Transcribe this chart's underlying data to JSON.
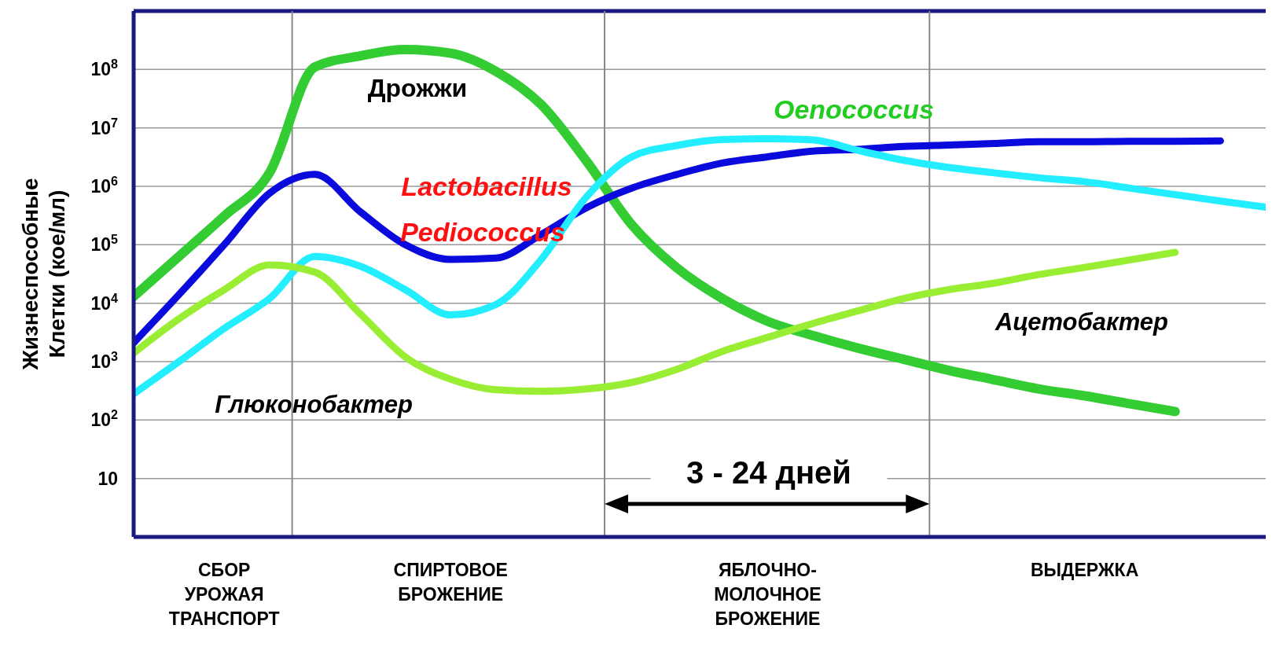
{
  "chart_data": {
    "type": "line",
    "ylabel": "Жизнеспособные\nКлетки (кое/мл)",
    "log": "y",
    "grid": "y",
    "marker": "none",
    "line_style": "solid",
    "categories": [
      null,
      null,
      "СБОР\nУРОЖАЯ\nТРАНСПОРТ",
      null,
      null,
      null,
      null,
      "СПИРТОВОЕ\nБРОЖЕНИЕ",
      null,
      null,
      null,
      null,
      null,
      null,
      "ЯБЛОЧНО-\nМОЛОЧНОЕ\nБРОЖЕНИЕ",
      null,
      null,
      null,
      null,
      null,
      null,
      "ВЫДЕРЖКА",
      null,
      null,
      null,
      null
    ],
    "ylim": [
      1,
      1000000000
    ],
    "yticks": [
      {
        "value": 10,
        "label": "10"
      },
      {
        "value": 100,
        "label": "10$^{2}$"
      },
      {
        "value": 1000,
        "label": "10$^{3}$"
      },
      {
        "value": 10000,
        "label": "10$^{4}$"
      },
      {
        "value": 100000,
        "label": "10$^{5}$"
      },
      {
        "value": 1000000,
        "label": "10$^{6}$"
      },
      {
        "value": 10000000,
        "label": "10$^{7}$"
      },
      {
        "value": 100000000,
        "label": "10$^{8}$"
      }
    ],
    "series": [
      {
        "color": "#33cc33",
        "values": [
          13000,
          63000,
          310000,
          1700000,
          110000000,
          170000000,
          220000000,
          190000000,
          93000000,
          25000000,
          2700000,
          220000,
          40000,
          12000,
          4900,
          2800,
          1700,
          1100,
          710,
          490,
          340,
          260,
          190,
          140,
          null,
          null
        ]
      },
      {
        "color": "#0a0adc",
        "values": [
          2100,
          14000,
          100000,
          760000,
          1600000,
          370000,
          100000,
          56000,
          59000,
          150000,
          430000,
          930000,
          1600000,
          2500000,
          3200000,
          4000000,
          4300000,
          4800000,
          5100000,
          5400000,
          5800000,
          5800000,
          5900000,
          5900000,
          6000000,
          null
        ]
      },
      {
        "color": "#22eeff",
        "values": [
          280,
          1000,
          3700,
          12000,
          63000,
          43000,
          17000,
          6300,
          9500,
          56000,
          660000,
          3200000,
          5000000,
          6300000,
          6500000,
          6200000,
          4100000,
          2800000,
          2100000,
          1700000,
          1400000,
          1200000,
          930000,
          720000,
          560000,
          440000
        ]
      },
      {
        "color": "#99ee33",
        "values": [
          1400,
          5400,
          17000,
          45000,
          34000,
          6600,
          1200,
          500,
          330,
          310,
          340,
          440,
          740,
          1500,
          2600,
          4500,
          7400,
          12000,
          17000,
          22000,
          31000,
          41000,
          55000,
          74000,
          null,
          null
        ]
      }
    ],
    "annotations": [
      "Дрожжи",
      "Lactobacillus",
      "Pediococcus",
      "Oenococcus",
      "Ацетобактер",
      "Глюконобактер",
      "3 - 24 дней"
    ]
  }
}
